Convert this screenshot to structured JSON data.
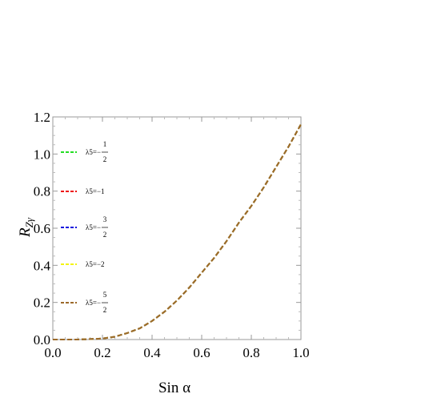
{
  "chart_data": {
    "type": "line",
    "xlabel": "Sin α",
    "ylabel": "R",
    "ylabel_sub": "Zγ",
    "xlim": [
      0.0,
      1.0
    ],
    "ylim": [
      0.0,
      1.2
    ],
    "x_ticks": [
      "0.0",
      "0.2",
      "0.4",
      "0.6",
      "0.8",
      "1.0"
    ],
    "y_ticks": [
      "0.0",
      "0.2",
      "0.4",
      "0.6",
      "0.8",
      "1.0",
      "1.2"
    ],
    "grid": false,
    "legend_position": "left",
    "x": [
      0.0,
      0.1,
      0.2,
      0.25,
      0.3,
      0.35,
      0.4,
      0.45,
      0.5,
      0.55,
      0.6,
      0.65,
      0.7,
      0.75,
      0.8,
      0.85,
      0.9,
      0.95,
      1.0
    ],
    "series": [
      {
        "name": "λ5=−1/2",
        "legend_parts": {
          "prefix": "λ5=−",
          "num": "1",
          "den": "2"
        },
        "color": "#22dd22",
        "values": [
          0.0,
          0.0,
          0.005,
          0.015,
          0.035,
          0.06,
          0.1,
          0.15,
          0.21,
          0.28,
          0.36,
          0.44,
          0.53,
          0.63,
          0.72,
          0.82,
          0.93,
          1.04,
          1.16
        ]
      },
      {
        "name": "λ5=−1",
        "legend_parts": {
          "prefix": "λ5=−1",
          "num": "",
          "den": ""
        },
        "color": "#ee1111",
        "values": [
          0.0,
          0.0,
          0.005,
          0.015,
          0.035,
          0.06,
          0.1,
          0.15,
          0.21,
          0.28,
          0.36,
          0.44,
          0.53,
          0.63,
          0.72,
          0.82,
          0.93,
          1.04,
          1.16
        ]
      },
      {
        "name": "λ5=−3/2",
        "legend_parts": {
          "prefix": "λ5=−",
          "num": "3",
          "den": "2"
        },
        "color": "#1111dd",
        "values": [
          0.0,
          0.0,
          0.005,
          0.015,
          0.035,
          0.06,
          0.1,
          0.15,
          0.21,
          0.28,
          0.36,
          0.44,
          0.53,
          0.63,
          0.72,
          0.82,
          0.93,
          1.04,
          1.16
        ]
      },
      {
        "name": "λ5=−2",
        "legend_parts": {
          "prefix": "λ5=−2",
          "num": "",
          "den": ""
        },
        "color": "#f4f411",
        "values": [
          0.0,
          0.0,
          0.005,
          0.015,
          0.035,
          0.06,
          0.1,
          0.15,
          0.21,
          0.28,
          0.36,
          0.44,
          0.53,
          0.63,
          0.72,
          0.82,
          0.93,
          1.04,
          1.16
        ]
      },
      {
        "name": "λ5=−5/2",
        "legend_parts": {
          "prefix": "λ5=−",
          "num": "5",
          "den": "2"
        },
        "color": "#9c6a2a",
        "values": [
          0.0,
          0.0,
          0.005,
          0.015,
          0.035,
          0.06,
          0.1,
          0.15,
          0.21,
          0.28,
          0.36,
          0.44,
          0.53,
          0.63,
          0.72,
          0.82,
          0.93,
          1.04,
          1.16
        ]
      }
    ]
  }
}
